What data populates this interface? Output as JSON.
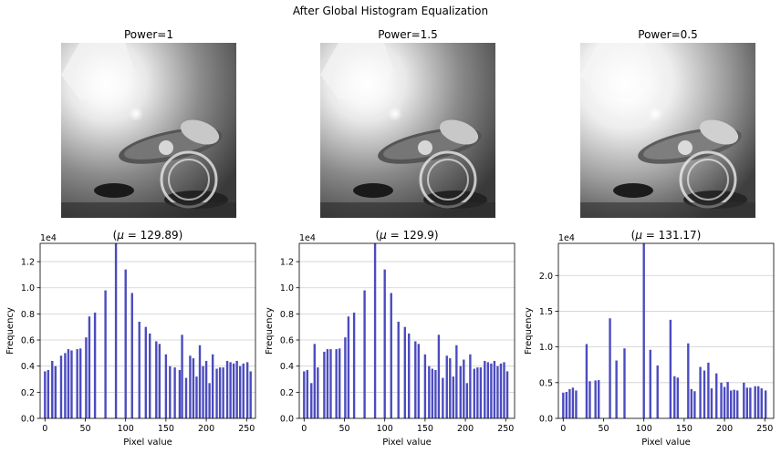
{
  "figure": {
    "suptitle": "After Global Histogram Equalization"
  },
  "images": [
    {
      "title": "Power=1"
    },
    {
      "title": "Power=1.5"
    },
    {
      "title": "Power=0.5"
    }
  ],
  "colors": {
    "bar": "#4b4bc0",
    "grid": "#cfcfcf",
    "axis": "#000000"
  },
  "chart_data": [
    {
      "type": "bar",
      "title": "(μ = 129.89)",
      "title_mean": "129.89",
      "xlabel": "Pixel value",
      "ylabel": "Frequency",
      "y_multiplier": "1e4",
      "xlim": [
        -6,
        261
      ],
      "ylim": [
        0,
        13400
      ],
      "xticks": [
        0,
        50,
        100,
        150,
        200,
        250
      ],
      "yticks": [
        0,
        2000,
        4000,
        6000,
        8000,
        10000,
        12000
      ],
      "ytick_labels": [
        "0.0",
        "0.2",
        "0.4",
        "0.6",
        "0.8",
        "1.0",
        "1.2"
      ],
      "grid": "y",
      "bars": [
        [
          0,
          3600
        ],
        [
          4,
          3700
        ],
        [
          9,
          4400
        ],
        [
          13,
          4000
        ],
        [
          20,
          4800
        ],
        [
          25,
          5000
        ],
        [
          29,
          5300
        ],
        [
          33,
          5200
        ],
        [
          40,
          5300
        ],
        [
          44,
          5350
        ],
        [
          51,
          6200
        ],
        [
          55,
          7800
        ],
        [
          62,
          8100
        ],
        [
          75,
          9800
        ],
        [
          88,
          13400
        ],
        [
          100,
          11400
        ],
        [
          108,
          9600
        ],
        [
          117,
          7400
        ],
        [
          125,
          7000
        ],
        [
          130,
          6500
        ],
        [
          138,
          5900
        ],
        [
          142,
          5700
        ],
        [
          150,
          4900
        ],
        [
          155,
          4000
        ],
        [
          161,
          3900
        ],
        [
          167,
          3700
        ],
        [
          170,
          6400
        ],
        [
          175,
          3100
        ],
        [
          180,
          4800
        ],
        [
          184,
          4600
        ],
        [
          188,
          3200
        ],
        [
          192,
          5600
        ],
        [
          196,
          4000
        ],
        [
          200,
          4400
        ],
        [
          204,
          2700
        ],
        [
          208,
          4900
        ],
        [
          213,
          3800
        ],
        [
          217,
          3900
        ],
        [
          221,
          3900
        ],
        [
          226,
          4400
        ],
        [
          230,
          4300
        ],
        [
          234,
          4200
        ],
        [
          238,
          4400
        ],
        [
          242,
          4000
        ],
        [
          246,
          4200
        ],
        [
          251,
          4300
        ],
        [
          255,
          3600
        ]
      ]
    },
    {
      "type": "bar",
      "title": "(μ = 129.9)",
      "title_mean": "129.9",
      "xlabel": "Pixel value",
      "ylabel": "Frequency",
      "y_multiplier": "1e4",
      "xlim": [
        -6,
        261
      ],
      "ylim": [
        0,
        13400
      ],
      "xticks": [
        0,
        50,
        100,
        150,
        200,
        250
      ],
      "yticks": [
        0,
        2000,
        4000,
        6000,
        8000,
        10000,
        12000
      ],
      "ytick_labels": [
        "0.0",
        "0.2",
        "0.4",
        "0.6",
        "0.8",
        "1.0",
        "1.2"
      ],
      "grid": "y",
      "bars": [
        [
          0,
          3600
        ],
        [
          4,
          3700
        ],
        [
          9,
          2700
        ],
        [
          13,
          5700
        ],
        [
          17,
          3900
        ],
        [
          25,
          5100
        ],
        [
          29,
          5300
        ],
        [
          33,
          5300
        ],
        [
          40,
          5300
        ],
        [
          44,
          5350
        ],
        [
          51,
          6200
        ],
        [
          55,
          7800
        ],
        [
          62,
          8100
        ],
        [
          75,
          9800
        ],
        [
          88,
          13400
        ],
        [
          100,
          11400
        ],
        [
          108,
          9600
        ],
        [
          117,
          7400
        ],
        [
          125,
          7000
        ],
        [
          130,
          6500
        ],
        [
          138,
          5900
        ],
        [
          142,
          5700
        ],
        [
          150,
          4900
        ],
        [
          155,
          4000
        ],
        [
          159,
          3800
        ],
        [
          163,
          3700
        ],
        [
          167,
          6400
        ],
        [
          172,
          3100
        ],
        [
          177,
          4800
        ],
        [
          181,
          4600
        ],
        [
          185,
          3200
        ],
        [
          189,
          5600
        ],
        [
          194,
          4000
        ],
        [
          198,
          4500
        ],
        [
          202,
          2700
        ],
        [
          206,
          4900
        ],
        [
          211,
          3800
        ],
        [
          215,
          3900
        ],
        [
          219,
          3900
        ],
        [
          224,
          4400
        ],
        [
          228,
          4300
        ],
        [
          232,
          4200
        ],
        [
          236,
          4400
        ],
        [
          240,
          4000
        ],
        [
          244,
          4200
        ],
        [
          248,
          4300
        ],
        [
          252,
          3600
        ]
      ]
    },
    {
      "type": "bar",
      "title": "(μ = 131.17)",
      "title_mean": "131.17",
      "xlabel": "Pixel value",
      "ylabel": "Frequency",
      "y_multiplier": "1e4",
      "xlim": [
        -6,
        261
      ],
      "ylim": [
        0,
        24500
      ],
      "xticks": [
        0,
        50,
        100,
        150,
        200,
        250
      ],
      "yticks": [
        0,
        5000,
        10000,
        15000,
        20000
      ],
      "ytick_labels": [
        "0.0",
        "0.5",
        "1.0",
        "1.5",
        "2.0"
      ],
      "grid": "y",
      "bars": [
        [
          0,
          3600
        ],
        [
          4,
          3700
        ],
        [
          8,
          4100
        ],
        [
          12,
          4300
        ],
        [
          16,
          3900
        ],
        [
          29,
          10400
        ],
        [
          33,
          5200
        ],
        [
          40,
          5300
        ],
        [
          44,
          5350
        ],
        [
          58,
          14000
        ],
        [
          66,
          8100
        ],
        [
          76,
          9800
        ],
        [
          100,
          24500
        ],
        [
          108,
          9600
        ],
        [
          117,
          7400
        ],
        [
          133,
          13800
        ],
        [
          138,
          5900
        ],
        [
          142,
          5700
        ],
        [
          155,
          10500
        ],
        [
          159,
          4100
        ],
        [
          163,
          3800
        ],
        [
          170,
          7200
        ],
        [
          175,
          6700
        ],
        [
          180,
          7800
        ],
        [
          184,
          4200
        ],
        [
          190,
          6300
        ],
        [
          196,
          5000
        ],
        [
          200,
          4400
        ],
        [
          204,
          5100
        ],
        [
          208,
          3900
        ],
        [
          212,
          4000
        ],
        [
          216,
          3900
        ],
        [
          224,
          5000
        ],
        [
          228,
          4300
        ],
        [
          232,
          4300
        ],
        [
          238,
          4500
        ],
        [
          242,
          4500
        ],
        [
          246,
          4200
        ],
        [
          251,
          3900
        ]
      ]
    }
  ]
}
